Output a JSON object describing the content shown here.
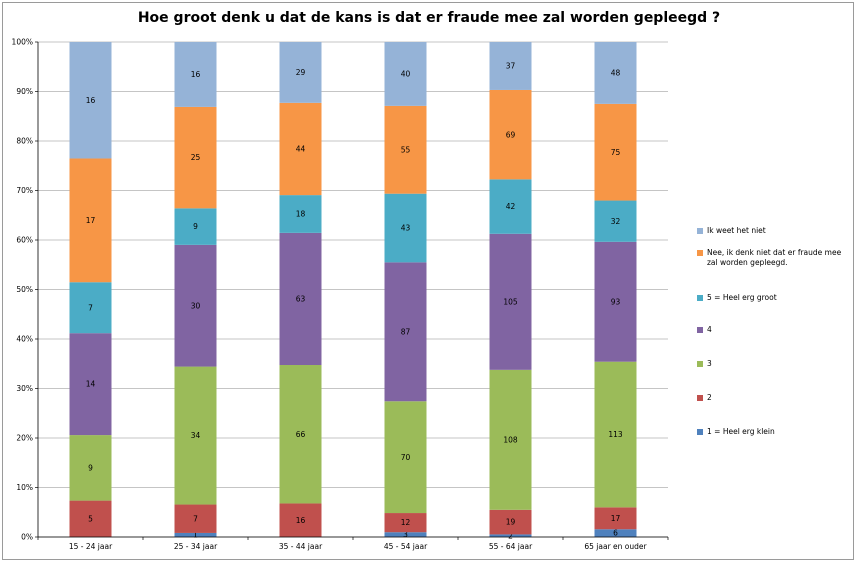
{
  "chart_data": {
    "type": "bar",
    "stacked": "percent",
    "title": "Hoe groot denk u dat de kans is dat er fraude mee zal worden gepleegd ?",
    "categories": [
      "15 - 24 jaar",
      "25 - 34 jaar",
      "35 - 44 jaar",
      "45 - 54 jaar",
      "55 - 64 jaar",
      "65 jaar en ouder"
    ],
    "yticks": [
      "0%",
      "10%",
      "20%",
      "30%",
      "40%",
      "50%",
      "60%",
      "70%",
      "80%",
      "90%",
      "100%"
    ],
    "ylim": [
      0,
      100
    ],
    "legend_position": "right",
    "series": [
      {
        "name": "1 = Heel erg klein",
        "color": "#4f81bd",
        "values": [
          0,
          1,
          0,
          3,
          2,
          6
        ]
      },
      {
        "name": "2",
        "color": "#c0504d",
        "values": [
          5,
          7,
          16,
          12,
          19,
          17
        ]
      },
      {
        "name": "3",
        "color": "#9bbb59",
        "values": [
          9,
          34,
          66,
          70,
          108,
          113
        ]
      },
      {
        "name": "4",
        "color": "#8064a2",
        "values": [
          14,
          30,
          63,
          87,
          105,
          93
        ]
      },
      {
        "name": "5 = Heel erg groot",
        "color": "#4bacc6",
        "values": [
          7,
          9,
          18,
          43,
          42,
          32
        ]
      },
      {
        "name": "Nee, ik denk niet dat er fraude mee zal worden gepleegd.",
        "color": "#f79646",
        "values": [
          17,
          25,
          44,
          55,
          69,
          75
        ]
      },
      {
        "name": "Ik weet het niet",
        "color": "#95b3d7",
        "values": [
          16,
          16,
          29,
          40,
          37,
          48
        ]
      }
    ]
  }
}
